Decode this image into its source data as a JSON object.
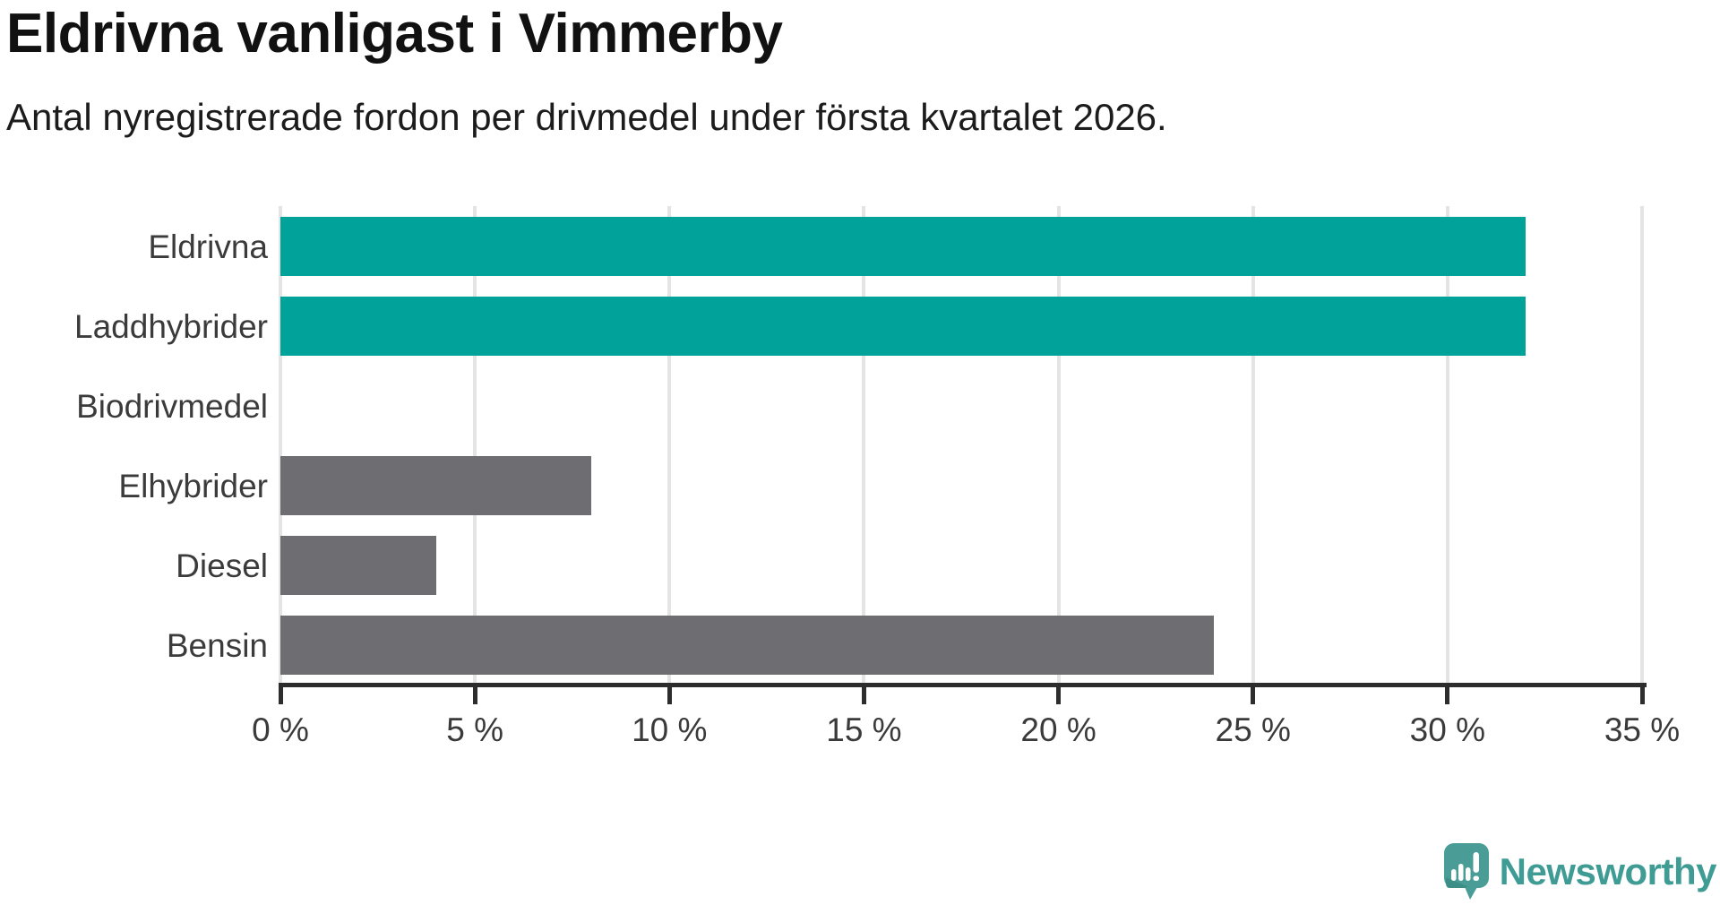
{
  "chart_data": {
    "type": "bar",
    "orientation": "horizontal",
    "title": "Eldrivna vanligast i Vimmerby",
    "subtitle": "Antal nyregistrerade fordon per drivmedel under första kvartalet 2026.",
    "categories": [
      "Eldrivna",
      "Laddhybrider",
      "Biodrivmedel",
      "Elhybrider",
      "Diesel",
      "Bensin"
    ],
    "values": [
      32,
      32,
      0,
      8,
      4,
      24
    ],
    "unit": "%",
    "xlabel": "",
    "ylabel": "",
    "xlim": [
      0,
      35
    ],
    "x_tick_values": [
      0,
      5,
      10,
      15,
      20,
      25,
      30,
      35
    ],
    "x_tick_labels": [
      "0 %",
      "5 %",
      "10 %",
      "15 %",
      "20 %",
      "25 %",
      "30 %",
      "35 %"
    ],
    "grid": true,
    "legend": "none",
    "bar_colors": [
      "#00a29a",
      "#00a29a",
      "#6d6d72",
      "#6d6d72",
      "#6d6d72",
      "#6d6d72"
    ],
    "highlight_color": "#00a29a",
    "default_bar_color": "#6d6d72",
    "grid_color": "#e4e4e4",
    "axis_color": "#2d2d2d",
    "label_color": "#3b3b3b"
  },
  "branding": {
    "logo_text": "Newsworthy",
    "logo_color": "#3f9c95",
    "logo_icon": "bar-chart-speech-bubble"
  }
}
